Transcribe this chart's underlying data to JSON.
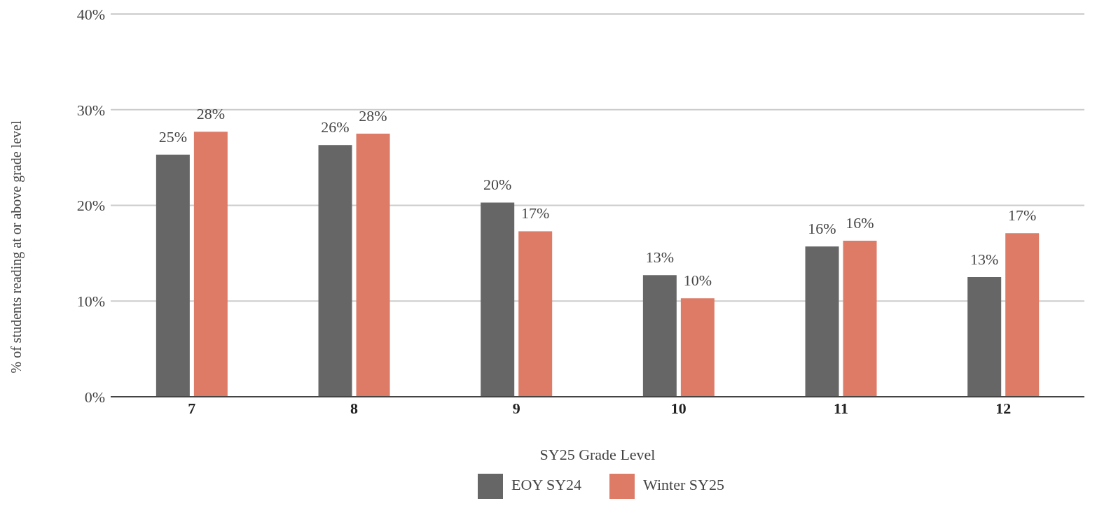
{
  "chart_data": {
    "type": "bar",
    "xlabel": "SY25 Grade Level",
    "ylabel": "% of students reading at or above grade level",
    "categories": [
      "7",
      "8",
      "9",
      "10",
      "11",
      "12"
    ],
    "series": [
      {
        "name": "EOY SY24",
        "color": "#666666",
        "values": [
          25.3,
          26.3,
          20.3,
          12.7,
          15.7,
          12.5
        ],
        "value_labels": [
          "25%",
          "26%",
          "20%",
          "13%",
          "16%",
          "13%"
        ]
      },
      {
        "name": "Winter SY25",
        "color": "#dd7b67",
        "values": [
          27.7,
          27.5,
          17.3,
          10.3,
          16.3,
          17.1
        ],
        "value_labels": [
          "28%",
          "28%",
          "17%",
          "10%",
          "16%",
          "17%"
        ]
      }
    ],
    "ylim": [
      0,
      40
    ],
    "yticks": [
      {
        "value": 0,
        "label": "0%"
      },
      {
        "value": 10,
        "label": "10%"
      },
      {
        "value": 20,
        "label": "20%"
      },
      {
        "value": 30,
        "label": "30%"
      },
      {
        "value": 40,
        "label": "40%"
      }
    ],
    "grid": "y",
    "legend": "bottom"
  }
}
